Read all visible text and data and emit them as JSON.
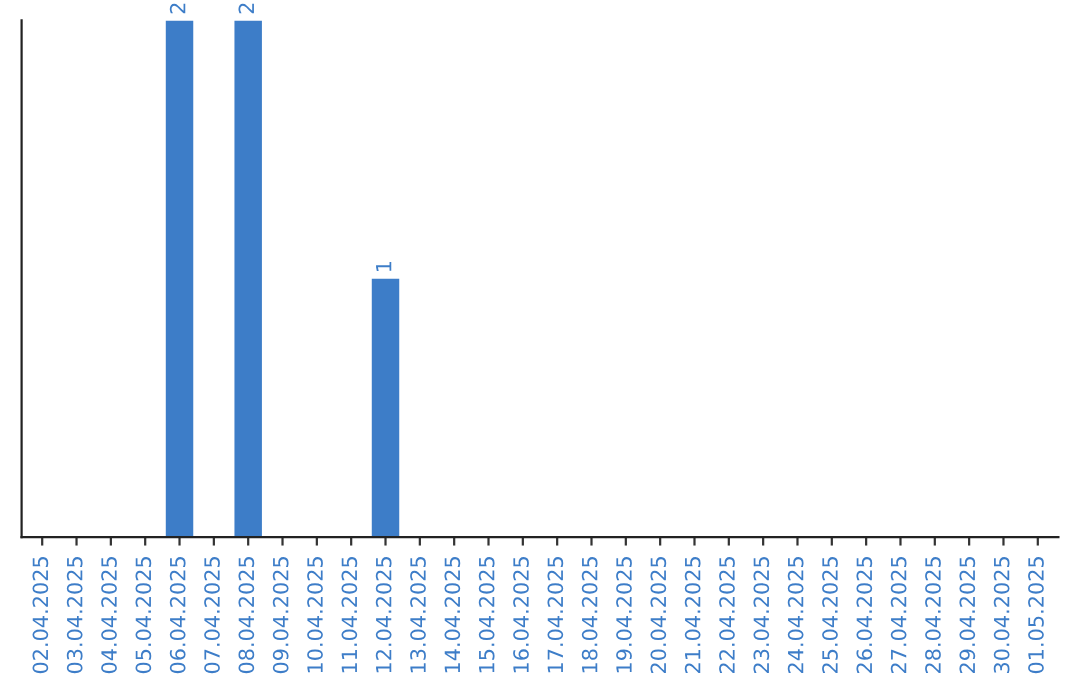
{
  "chart_data": {
    "type": "bar",
    "categories": [
      "02.04.2025",
      "03.04.2025",
      "04.04.2025",
      "05.04.2025",
      "06.04.2025",
      "07.04.2025",
      "08.04.2025",
      "09.04.2025",
      "10.04.2025",
      "11.04.2025",
      "12.04.2025",
      "13.04.2025",
      "14.04.2025",
      "15.04.2025",
      "16.04.2025",
      "17.04.2025",
      "18.04.2025",
      "19.04.2025",
      "20.04.2025",
      "21.04.2025",
      "22.04.2025",
      "23.04.2025",
      "24.04.2025",
      "25.04.2025",
      "26.04.2025",
      "27.04.2025",
      "28.04.2025",
      "29.04.2025",
      "30.04.2025",
      "01.05.2025"
    ],
    "values": [
      0,
      0,
      0,
      0,
      2,
      0,
      2,
      0,
      0,
      0,
      1,
      0,
      0,
      0,
      0,
      0,
      0,
      0,
      0,
      0,
      0,
      0,
      0,
      0,
      0,
      0,
      0,
      0,
      0,
      0
    ],
    "value_labels": [
      null,
      null,
      null,
      null,
      "2",
      null,
      "2",
      null,
      null,
      null,
      "1",
      null,
      null,
      null,
      null,
      null,
      null,
      null,
      null,
      null,
      null,
      null,
      null,
      null,
      null,
      null,
      null,
      null,
      null,
      null
    ],
    "color": "#3d7dc8",
    "ylim": [
      0,
      2
    ],
    "tick_labels": "x",
    "grid": false
  }
}
